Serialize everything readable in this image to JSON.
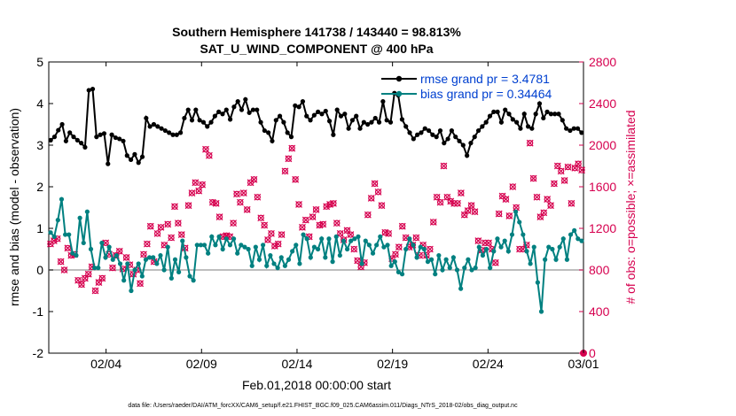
{
  "chart_data": {
    "type": "line",
    "title": "Southern Hemisphere 141738 / 143440 = 98.813%",
    "subtitle": "SAT_U_WIND_COMPONENT @ 400 hPa",
    "xlabel": "Feb.01,2018 00:00:00 start",
    "ylabel_left": "rmse and bias (model - observation)",
    "ylabel_right": "# of obs: o=possible; ×=assimilated",
    "footer": "data file: /Users/raeder/DAI/ATM_forcXX/CAM6_setup/f.e21.FHIST_BGC.f09_025.CAM6assim.011/Diags_NTrS_2018-02/obs_diag_output.nc",
    "xlim": [
      1,
      29
    ],
    "ylim_left": [
      -2,
      5
    ],
    "ylim_right": [
      0,
      2800
    ],
    "x_ticks": [
      4,
      9,
      14,
      19,
      24,
      29
    ],
    "x_tick_labels": [
      "02/04",
      "02/09",
      "02/14",
      "02/19",
      "02/24",
      "03/01"
    ],
    "y_ticks_left": [
      -2,
      -1,
      0,
      1,
      2,
      3,
      4,
      5
    ],
    "y_tick_labels_left": [
      "-2",
      "-1",
      "0",
      "1",
      "2",
      "3",
      "4",
      "5"
    ],
    "y_ticks_right": [
      0,
      400,
      800,
      1200,
      1600,
      2000,
      2400,
      2800
    ],
    "y_tick_labels_right": [
      "0",
      "400",
      "800",
      "1200",
      "1600",
      "2000",
      "2400",
      "2800"
    ],
    "legend_position": "top-right",
    "zero_line": 0,
    "colors": {
      "rmse": "#000000",
      "bias": "#008080",
      "obs": "#d6004f",
      "legend_text": "#0040d0",
      "right_axis": "#d6004f"
    },
    "series": [
      {
        "name": "rmse grand pr = 3.4781",
        "axis": "left",
        "values": [
          3.12,
          3.2,
          3.36,
          3.5,
          3.1,
          3.3,
          3.2,
          3.12,
          3.05,
          2.95,
          4.32,
          4.35,
          3.2,
          3.25,
          3.28,
          2.55,
          3.25,
          3.18,
          3.15,
          3.1,
          2.75,
          2.65,
          2.78,
          2.58,
          2.72,
          3.65,
          3.45,
          3.5,
          3.45,
          3.4,
          3.35,
          3.3,
          3.25,
          3.25,
          3.3,
          3.65,
          3.85,
          3.6,
          3.85,
          3.6,
          3.55,
          3.45,
          3.55,
          3.7,
          3.8,
          3.75,
          3.85,
          3.62,
          3.92,
          4.05,
          3.85,
          4.1,
          3.78,
          3.85,
          3.85,
          3.55,
          3.35,
          3.3,
          3.1,
          3.6,
          3.7,
          3.55,
          3.3,
          3.2,
          3.95,
          3.92,
          4.05,
          3.7,
          3.6,
          3.72,
          3.8,
          3.75,
          3.82,
          3.58,
          3.25,
          3.85,
          3.7,
          3.75,
          3.4,
          3.6,
          3.7,
          3.4,
          3.55,
          3.5,
          3.55,
          3.65,
          3.55,
          4.05,
          3.6,
          3.55,
          4.25,
          4.2,
          3.62,
          3.45,
          3.3,
          3.15,
          3.25,
          3.3,
          3.4,
          3.35,
          3.25,
          3.2,
          3.35,
          3.05,
          3.15,
          3.35,
          3.2,
          3.1,
          3.0,
          2.75,
          3.05,
          3.2,
          3.35,
          3.45,
          3.55,
          3.7,
          3.8,
          3.8,
          3.55,
          3.85,
          3.75,
          3.62,
          3.55,
          3.4,
          3.75,
          3.45,
          3.4,
          3.75,
          4.0,
          3.65,
          3.8,
          3.75,
          3.75,
          3.75,
          3.6,
          3.4,
          3.35,
          3.4,
          3.4,
          3.3
        ]
      },
      {
        "name": "bias grand pr = 0.34464",
        "axis": "left",
        "values": [
          0.9,
          0.8,
          1.2,
          1.7,
          0.85,
          0.85,
          0.4,
          0.35,
          1.25,
          0.65,
          1.4,
          0.5,
          0.05,
          0.05,
          0.65,
          0.3,
          0.55,
          0.25,
          0.35,
          0.15,
          -0.25,
          0.15,
          -0.5,
          0.0,
          0.15,
          -0.15,
          0.25,
          0.3,
          0.3,
          0.15,
          0.35,
          0.0,
          0.55,
          -0.2,
          0.25,
          -0.05,
          0.7,
          0.3,
          -0.15,
          -0.25,
          0.6,
          0.6,
          0.6,
          0.4,
          0.8,
          0.6,
          0.8,
          0.5,
          0.75,
          0.6,
          0.75,
          0.4,
          0.6,
          0.55,
          0.5,
          0.1,
          0.55,
          0.25,
          0.6,
          0.1,
          0.35,
          0.15,
          0.05,
          0.3,
          0.1,
          0.25,
          0.45,
          0.6,
          0.15,
          0.85,
          0.75,
          0.3,
          0.55,
          0.5,
          0.75,
          0.3,
          0.75,
          0.2,
          0.8,
          0.35,
          0.7,
          0.5,
          0.7,
          0.75,
          0.8,
          0.15,
          0.7,
          0.6,
          0.4,
          0.6,
          0.8,
          0.55,
          0.6,
          0.1,
          0.2,
          -0.05,
          -0.1,
          0.5,
          0.75,
          0.6,
          0.3,
          0.55,
          0.5,
          0.2,
          0.25,
          -0.1,
          0.35,
          0.0,
          0.25,
          0.05,
          0.3,
          0.0,
          -0.45,
          0.05,
          0.25,
          0.0,
          0.05,
          0.55,
          0.35,
          0.5,
          0.05,
          0.45,
          0.75,
          0.55,
          0.7,
          0.45,
          0.85,
          1.4,
          1.15,
          0.85,
          0.45,
          0.15,
          0.55,
          -0.3,
          -1.0,
          0.25,
          0.55,
          0.5,
          0.25,
          0.55,
          0.75,
          0.25,
          0.85,
          0.95,
          0.75,
          0.7
        ]
      },
      {
        "name": "# of obs",
        "axis": "right",
        "values": [
          1050,
          1080,
          1100,
          880,
          800,
          1010,
          940,
          950,
          700,
          660,
          720,
          760,
          830,
          600,
          680,
          720,
          1060,
          950,
          820,
          940,
          980,
          810,
          920,
          850,
          760,
          800,
          670,
          950,
          1050,
          1220,
          880,
          1150,
          1210,
          1040,
          1240,
          1110,
          1410,
          1250,
          1140,
          1010,
          1420,
          1540,
          1640,
          1560,
          1620,
          1960,
          1900,
          1450,
          1440,
          1310,
          1120,
          1130,
          1120,
          1250,
          1530,
          1450,
          1540,
          1380,
          1640,
          1670,
          1500,
          1300,
          1230,
          1090,
          1150,
          1030,
          1050,
          1140,
          1750,
          1870,
          1970,
          1670,
          1430,
          1210,
          1280,
          1120,
          1310,
          1380,
          1230,
          1240,
          1410,
          1430,
          1440,
          1250,
          1150,
          1090,
          1180,
          1140,
          1000,
          890,
          830,
          870,
          1330,
          1490,
          1630,
          1550,
          1420,
          1160,
          1150,
          910,
          950,
          1020,
          1220,
          1110,
          1020,
          1040,
          1110,
          940,
          1040,
          940,
          1000,
          1260,
          1500,
          1450,
          1800,
          1500,
          1460,
          1440,
          1440,
          1540,
          1330,
          1370,
          1420,
          1360,
          1080,
          990,
          1060,
          1060,
          1000,
          870,
          1340,
          1510,
          1480,
          1320,
          1600,
          1400,
          1000,
          1000,
          1040,
          2020,
          1680,
          1500,
          1310,
          1350,
          1480,
          1420,
          1630,
          1800,
          1750,
          1660,
          1790,
          1440,
          1780,
          1820,
          1760
        ]
      }
    ]
  }
}
